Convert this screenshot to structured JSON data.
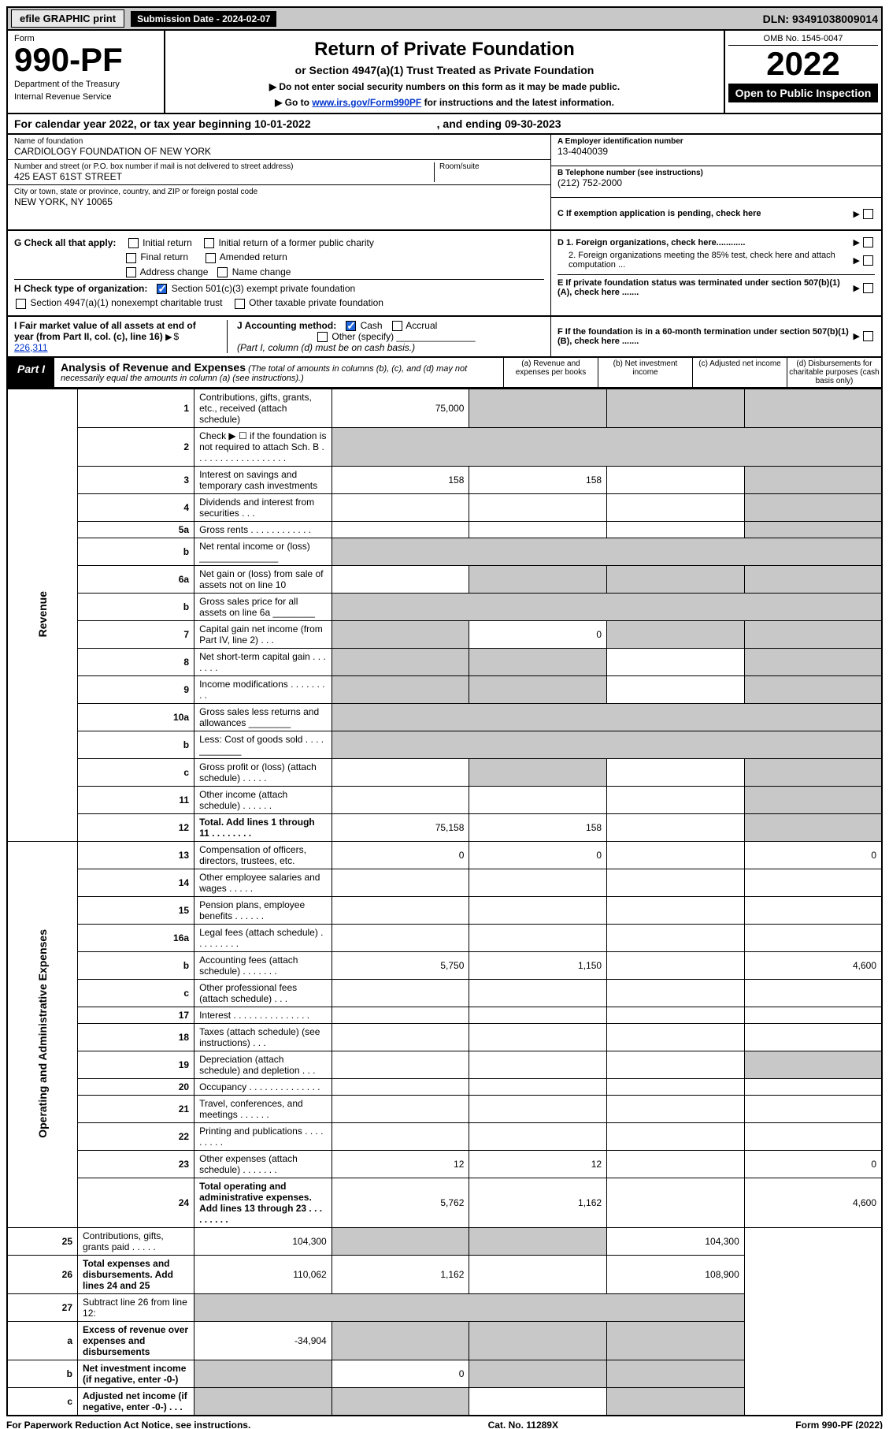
{
  "top": {
    "efile": "efile GRAPHIC print",
    "sub_label": "Submission Date - 2024-02-07",
    "dln": "DLN: 93491038009014"
  },
  "header": {
    "form_word": "Form",
    "form_no": "990-PF",
    "dept": "Department of the Treasury",
    "irs": "Internal Revenue Service",
    "title": "Return of Private Foundation",
    "subtitle": "or Section 4947(a)(1) Trust Treated as Private Foundation",
    "note1": "▶ Do not enter social security numbers on this form as it may be made public.",
    "note2_pre": "▶ Go to ",
    "note2_link": "www.irs.gov/Form990PF",
    "note2_post": " for instructions and the latest information.",
    "omb": "OMB No. 1545-0047",
    "year": "2022",
    "open": "Open to Public Inspection"
  },
  "cal": {
    "text": "For calendar year 2022, or tax year beginning 10-01-2022",
    "end": ", and ending 09-30-2023"
  },
  "info": {
    "name_lbl": "Name of foundation",
    "name": "CARDIOLOGY FOUNDATION OF NEW YORK",
    "addr_lbl": "Number and street (or P.O. box number if mail is not delivered to street address)",
    "addr": "425 EAST 61ST STREET",
    "room_lbl": "Room/suite",
    "city_lbl": "City or town, state or province, country, and ZIP or foreign postal code",
    "city": "NEW YORK, NY  10065",
    "a_lbl": "A Employer identification number",
    "a": "13-4040039",
    "b_lbl": "B Telephone number (see instructions)",
    "b": "(212) 752-2000",
    "c_lbl": "C If exemption application is pending, check here",
    "d1": "D 1. Foreign organizations, check here............",
    "d2": "2. Foreign organizations meeting the 85% test, check here and attach computation ...",
    "e": "E  If private foundation status was terminated under section 507(b)(1)(A), check here .......",
    "f": "F  If the foundation is in a 60-month termination under section 507(b)(1)(B), check here .......",
    "g_lbl": "G Check all that apply:",
    "g_opts": [
      "Initial return",
      "Initial return of a former public charity",
      "Final return",
      "Amended return",
      "Address change",
      "Name change"
    ],
    "h_lbl": "H Check type of organization:",
    "h_opts": [
      "Section 501(c)(3) exempt private foundation",
      "Section 4947(a)(1) nonexempt charitable trust",
      "Other taxable private foundation"
    ],
    "i_lbl": "I Fair market value of all assets at end of year (from Part II, col. (c), line 16)",
    "i_val": "226,311",
    "j_lbl": "J Accounting method:",
    "j_cash": "Cash",
    "j_accrual": "Accrual",
    "j_other": "Other (specify)",
    "j_note": "(Part I, column (d) must be on cash basis.)"
  },
  "part1": {
    "label": "Part I",
    "title": "Analysis of Revenue and Expenses",
    "sub": "(The total of amounts in columns (b), (c), and (d) may not necessarily equal the amounts in column (a) (see instructions).)",
    "col_a": "(a) Revenue and expenses per books",
    "col_b": "(b) Net investment income",
    "col_c": "(c) Adjusted net income",
    "col_d": "(d) Disbursements for charitable purposes (cash basis only)"
  },
  "side": {
    "rev": "Revenue",
    "exp": "Operating and Administrative Expenses"
  },
  "rows": [
    {
      "n": "1",
      "d": "Contributions, gifts, grants, etc., received (attach schedule)",
      "a": "75,000",
      "b": "",
      "c": "",
      "dd": "",
      "ga": false,
      "gb": true,
      "gc": true,
      "gd": true
    },
    {
      "n": "2",
      "d": "Check ▶ ☐ if the foundation is not required to attach Sch. B  . . . . . . . . . . . . . . . . . .",
      "blank": true
    },
    {
      "n": "3",
      "d": "Interest on savings and temporary cash investments",
      "a": "158",
      "b": "158",
      "c": "",
      "dd": "",
      "gd": true
    },
    {
      "n": "4",
      "d": "Dividends and interest from securities   .  .  .",
      "a": "",
      "b": "",
      "c": "",
      "dd": "",
      "gd": true
    },
    {
      "n": "5a",
      "d": "Gross rents   .  .  .  .  .  .  .  .  .  .  .  .",
      "a": "",
      "b": "",
      "c": "",
      "dd": "",
      "gd": true
    },
    {
      "n": "b",
      "d": "Net rental income or (loss)  _______________",
      "blank": true
    },
    {
      "n": "6a",
      "d": "Net gain or (loss) from sale of assets not on line 10",
      "a": "",
      "b": "",
      "c": "",
      "dd": "",
      "gb": true,
      "gc": true,
      "gd": true
    },
    {
      "n": "b",
      "d": "Gross sales price for all assets on line 6a ________",
      "blank": true
    },
    {
      "n": "7",
      "d": "Capital gain net income (from Part IV, line 2)   .  .  .",
      "a": "",
      "b": "0",
      "c": "",
      "dd": "",
      "ga": true,
      "gc": true,
      "gd": true
    },
    {
      "n": "8",
      "d": "Net short-term capital gain  .  .  .  .  .  .  .",
      "a": "",
      "b": "",
      "c": "",
      "dd": "",
      "ga": true,
      "gb": true,
      "gd": true
    },
    {
      "n": "9",
      "d": "Income modifications  .  .  .  .  .  .  .  .  .",
      "a": "",
      "b": "",
      "c": "",
      "dd": "",
      "ga": true,
      "gb": true,
      "gd": true
    },
    {
      "n": "10a",
      "d": "Gross sales less returns and allowances  ________",
      "blank": true
    },
    {
      "n": "b",
      "d": "Less: Cost of goods sold  .  .  .  .  ________",
      "blank": true
    },
    {
      "n": "c",
      "d": "Gross profit or (loss) (attach schedule)   .  .  .  .  .",
      "a": "",
      "b": "",
      "c": "",
      "dd": "",
      "gb": true,
      "gd": true
    },
    {
      "n": "11",
      "d": "Other income (attach schedule)   .  .  .  .  .  .",
      "a": "",
      "b": "",
      "c": "",
      "dd": "",
      "gd": true
    },
    {
      "n": "12",
      "d": "Total. Add lines 1 through 11  .  .  .  .  .  .  .  .",
      "a": "75,158",
      "b": "158",
      "c": "",
      "dd": "",
      "bold": true,
      "gd": true
    },
    {
      "n": "13",
      "d": "Compensation of officers, directors, trustees, etc.",
      "a": "0",
      "b": "0",
      "c": "",
      "dd": "0"
    },
    {
      "n": "14",
      "d": "Other employee salaries and wages   .  .  .  .  .",
      "a": "",
      "b": "",
      "c": "",
      "dd": ""
    },
    {
      "n": "15",
      "d": "Pension plans, employee benefits  .  .  .  .  .  .",
      "a": "",
      "b": "",
      "c": "",
      "dd": ""
    },
    {
      "n": "16a",
      "d": "Legal fees (attach schedule) .  .  .  .  .  .  .  .  .",
      "a": "",
      "b": "",
      "c": "",
      "dd": ""
    },
    {
      "n": "b",
      "d": "Accounting fees (attach schedule) .  .  .  .  .  .  .",
      "a": "5,750",
      "b": "1,150",
      "c": "",
      "dd": "4,600"
    },
    {
      "n": "c",
      "d": "Other professional fees (attach schedule)   .  .  .",
      "a": "",
      "b": "",
      "c": "",
      "dd": ""
    },
    {
      "n": "17",
      "d": "Interest  .  .  .  .  .  .  .  .  .  .  .  .  .  .  .",
      "a": "",
      "b": "",
      "c": "",
      "dd": ""
    },
    {
      "n": "18",
      "d": "Taxes (attach schedule) (see instructions)   .  .  .",
      "a": "",
      "b": "",
      "c": "",
      "dd": ""
    },
    {
      "n": "19",
      "d": "Depreciation (attach schedule) and depletion   .  .  .",
      "a": "",
      "b": "",
      "c": "",
      "dd": "",
      "gd": true
    },
    {
      "n": "20",
      "d": "Occupancy .  .  .  .  .  .  .  .  .  .  .  .  .  .",
      "a": "",
      "b": "",
      "c": "",
      "dd": ""
    },
    {
      "n": "21",
      "d": "Travel, conferences, and meetings .  .  .  .  .  .",
      "a": "",
      "b": "",
      "c": "",
      "dd": ""
    },
    {
      "n": "22",
      "d": "Printing and publications .  .  .  .  .  .  .  .  .",
      "a": "",
      "b": "",
      "c": "",
      "dd": ""
    },
    {
      "n": "23",
      "d": "Other expenses (attach schedule) .  .  .  .  .  .  .",
      "a": "12",
      "b": "12",
      "c": "",
      "dd": "0"
    },
    {
      "n": "24",
      "d": "Total operating and administrative expenses. Add lines 13 through 23  .  .  .  .  .  .  .  .  .",
      "a": "5,762",
      "b": "1,162",
      "c": "",
      "dd": "4,600",
      "bold": true
    },
    {
      "n": "25",
      "d": "Contributions, gifts, grants paid   .  .  .  .  .",
      "a": "104,300",
      "b": "",
      "c": "",
      "dd": "104,300",
      "gb": true,
      "gc": true
    },
    {
      "n": "26",
      "d": "Total expenses and disbursements. Add lines 24 and 25",
      "a": "110,062",
      "b": "1,162",
      "c": "",
      "dd": "108,900",
      "bold": true
    },
    {
      "n": "27",
      "d": "Subtract line 26 from line 12:",
      "blank": true,
      "ga": true,
      "gb": true,
      "gc": true,
      "gd": true,
      "noside": true
    },
    {
      "n": "a",
      "d": "Excess of revenue over expenses and disbursements",
      "a": "-34,904",
      "b": "",
      "c": "",
      "dd": "",
      "bold": true,
      "gb": true,
      "gc": true,
      "gd": true,
      "noside": true
    },
    {
      "n": "b",
      "d": "Net investment income (if negative, enter -0-)",
      "a": "",
      "b": "0",
      "c": "",
      "dd": "",
      "bold": true,
      "ga": true,
      "gc": true,
      "gd": true,
      "noside": true
    },
    {
      "n": "c",
      "d": "Adjusted net income (if negative, enter -0-)  .  .  .",
      "a": "",
      "b": "",
      "c": "",
      "dd": "",
      "bold": true,
      "ga": true,
      "gb": true,
      "gd": true,
      "noside": true
    }
  ],
  "foot": {
    "left": "For Paperwork Reduction Act Notice, see instructions.",
    "mid": "Cat. No. 11289X",
    "right": "Form 990-PF (2022)"
  },
  "colors": {
    "grey": "#c8c8c8",
    "link": "#0033cc",
    "black": "#000000"
  }
}
